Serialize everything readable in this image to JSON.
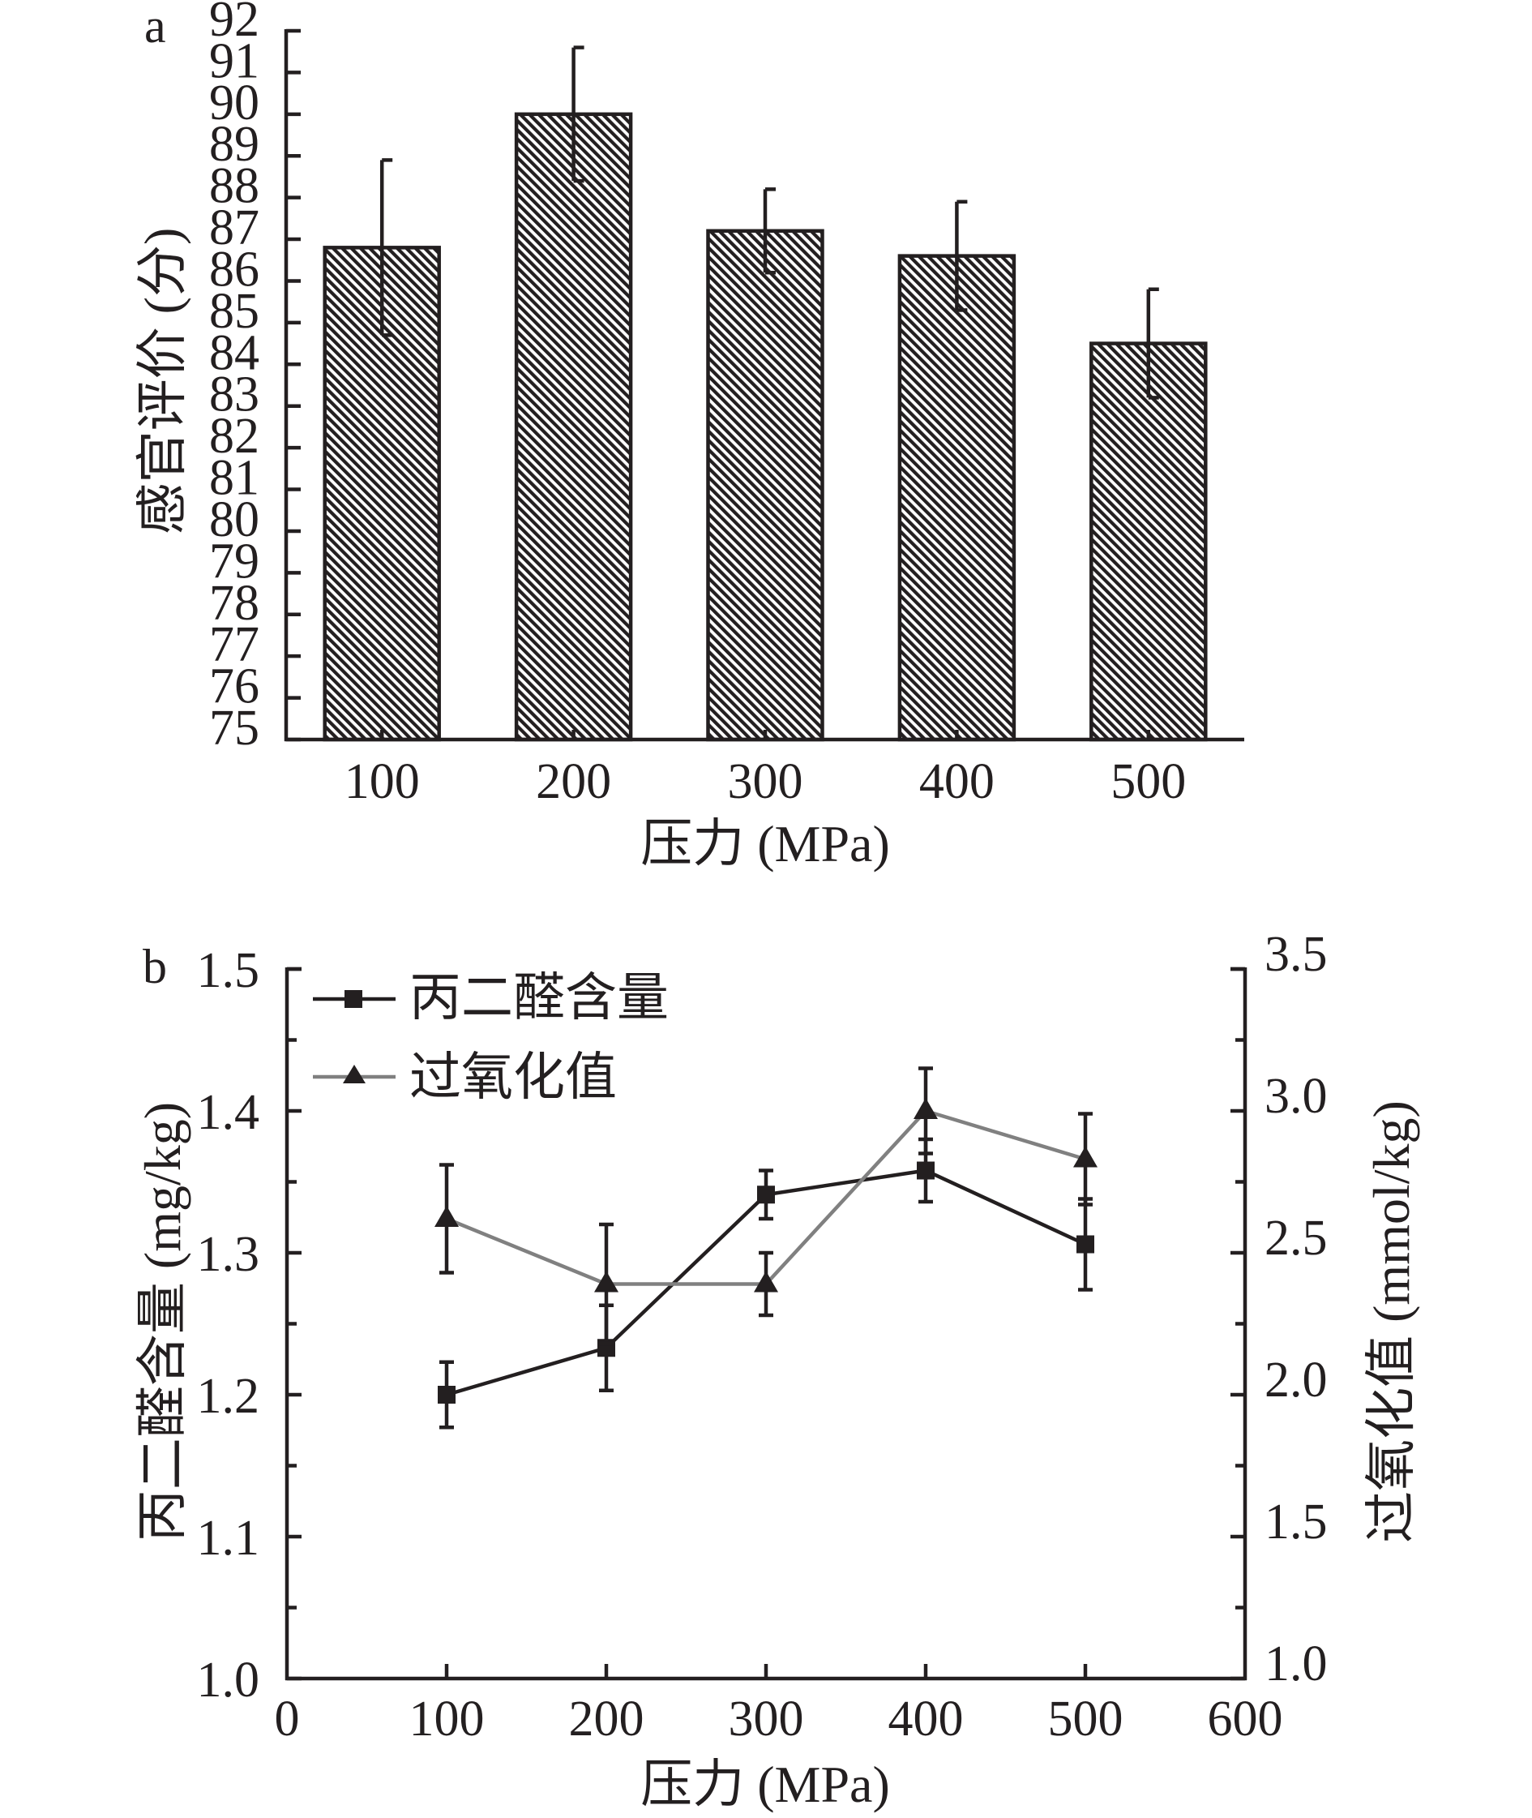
{
  "chart_data": [
    {
      "type": "bar",
      "panel_label": "a",
      "title": "",
      "xlabel": "压力 (MPa)",
      "ylabel": "感官评价 (分)",
      "categories": [
        "100",
        "200",
        "300",
        "400",
        "500"
      ],
      "values": [
        86.8,
        90.0,
        87.2,
        86.6,
        84.5
      ],
      "errors": [
        2.1,
        1.6,
        1.0,
        1.3,
        1.3
      ],
      "ylim": [
        75,
        92
      ],
      "yticks": [
        "75",
        "76",
        "77",
        "78",
        "79",
        "80",
        "81",
        "82",
        "83",
        "84",
        "85",
        "86",
        "87",
        "88",
        "89",
        "90",
        "91",
        "92"
      ],
      "bar_fill": "diagonal-hatch",
      "grid": false,
      "legend": "none"
    },
    {
      "type": "line",
      "panel_label": "b",
      "title": "",
      "xlabel": "压力 (MPa)",
      "ylabel": "丙二醛含量 (mg/kg)",
      "ylabel_right": "过氧化值 (mmol/kg)",
      "x": [
        100,
        200,
        300,
        400,
        500
      ],
      "xlim": [
        0,
        600
      ],
      "xticks": [
        "0",
        "100",
        "200",
        "300",
        "400",
        "500",
        "600"
      ],
      "ylim": [
        1.0,
        1.5
      ],
      "yticks": [
        "1.0",
        "1.1",
        "1.2",
        "1.3",
        "1.4",
        "1.5"
      ],
      "ylim_right": [
        1.0,
        3.5
      ],
      "yticks_right": [
        "1.0",
        "1.5",
        "2.0",
        "2.5",
        "3.0",
        "3.5"
      ],
      "series": [
        {
          "name": "丙二醛含量",
          "axis": "left",
          "marker": "square",
          "color": "#231f20",
          "values": [
            1.2,
            1.233,
            1.341,
            1.358,
            1.306
          ],
          "errors": [
            0.023,
            0.03,
            0.017,
            0.022,
            0.032
          ]
        },
        {
          "name": "过氧化值",
          "axis": "right",
          "marker": "triangle",
          "color": "#808080",
          "values": [
            2.62,
            2.39,
            2.39,
            3.0,
            2.83
          ],
          "errors": [
            0.19,
            0.21,
            0.11,
            0.15,
            0.16
          ]
        }
      ],
      "grid": false,
      "legend": "top-left"
    }
  ]
}
